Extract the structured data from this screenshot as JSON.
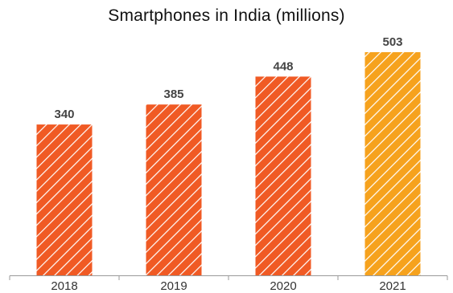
{
  "chart_data": {
    "type": "bar",
    "title": "Smartphones in India (millions)",
    "xlabel": "",
    "ylabel": "",
    "categories": [
      "2018",
      "2019",
      "2020",
      "2021"
    ],
    "values": [
      340,
      385,
      448,
      503
    ],
    "value_labels": [
      "340",
      "385",
      "448",
      "503"
    ],
    "ylim": [
      0,
      503
    ],
    "grid": false,
    "legend": "none",
    "bar_pattern": "diagonal-stripes",
    "colors": {
      "primary": "#f05a24",
      "highlight": "#f6a21d",
      "axis": "#9a9a9a",
      "stripe": "#ffffff"
    },
    "highlight_index": 3
  }
}
